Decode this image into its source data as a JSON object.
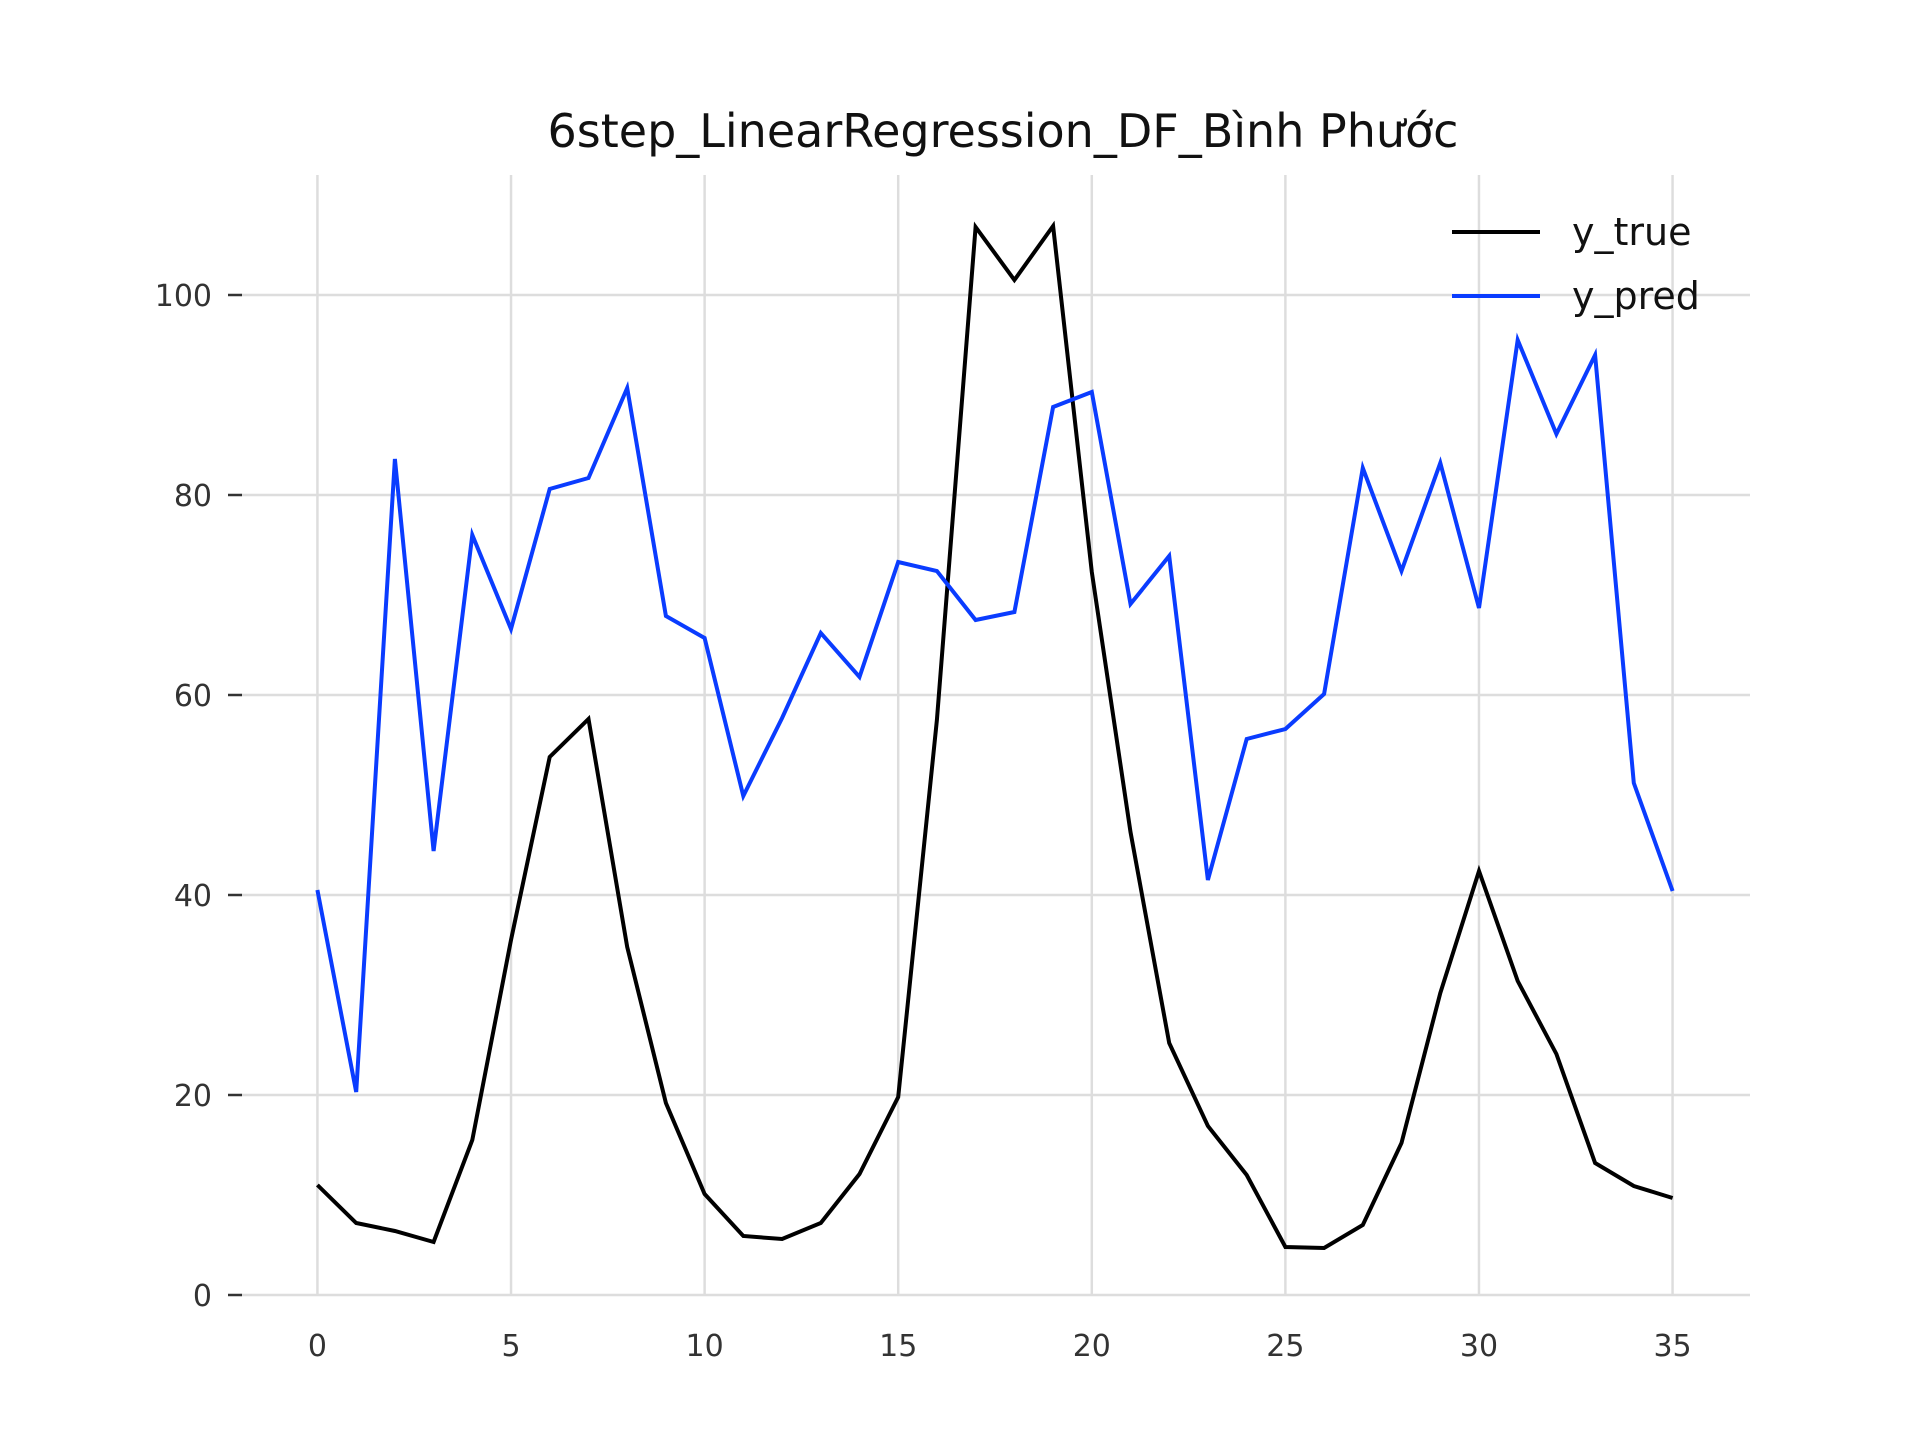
{
  "chart_data": {
    "type": "line",
    "title": "6step_LinearRegression_DF_Bình Phước",
    "xlabel": "",
    "ylabel": "",
    "xlim": [
      -2,
      37
    ],
    "ylim": [
      0,
      112
    ],
    "x": [
      0,
      1,
      2,
      3,
      4,
      5,
      6,
      7,
      8,
      9,
      10,
      11,
      12,
      13,
      14,
      15,
      16,
      17,
      18,
      19,
      20,
      21,
      22,
      23,
      24,
      25,
      26,
      27,
      28,
      29,
      30,
      31,
      32,
      33,
      34,
      35
    ],
    "x_ticks": [
      0,
      5,
      10,
      15,
      20,
      25,
      30,
      35
    ],
    "y_ticks": [
      0,
      20,
      40,
      60,
      80,
      100
    ],
    "grid": true,
    "legend_position": "top-right",
    "series": [
      {
        "name": "y_true",
        "color": "#000000",
        "values": [
          11,
          7.2,
          6.4,
          5.3,
          15.5,
          35.5,
          53.8,
          57.6,
          34.8,
          19.2,
          10.1,
          5.9,
          5.6,
          7.2,
          12.1,
          19.8,
          57.5,
          106.8,
          101.5,
          106.9,
          72.3,
          46.3,
          25.2,
          16.9,
          12.0,
          4.8,
          4.7,
          7.0,
          15.2,
          30.2,
          42.4,
          31.4,
          24.1,
          13.2,
          10.9,
          9.7
        ]
      },
      {
        "name": "y_pred",
        "color": "#0a3cff",
        "values": [
          40.5,
          20.3,
          83.6,
          44.4,
          76.0,
          66.6,
          80.6,
          81.7,
          90.7,
          67.9,
          65.7,
          49.9,
          57.7,
          66.2,
          61.8,
          73.3,
          72.4,
          67.5,
          68.3,
          88.8,
          90.3,
          69.1,
          73.9,
          41.5,
          55.6,
          56.6,
          60.1,
          82.7,
          72.4,
          83.2,
          68.7,
          95.5,
          86.1,
          94.0,
          51.2,
          40.4
        ]
      }
    ]
  }
}
